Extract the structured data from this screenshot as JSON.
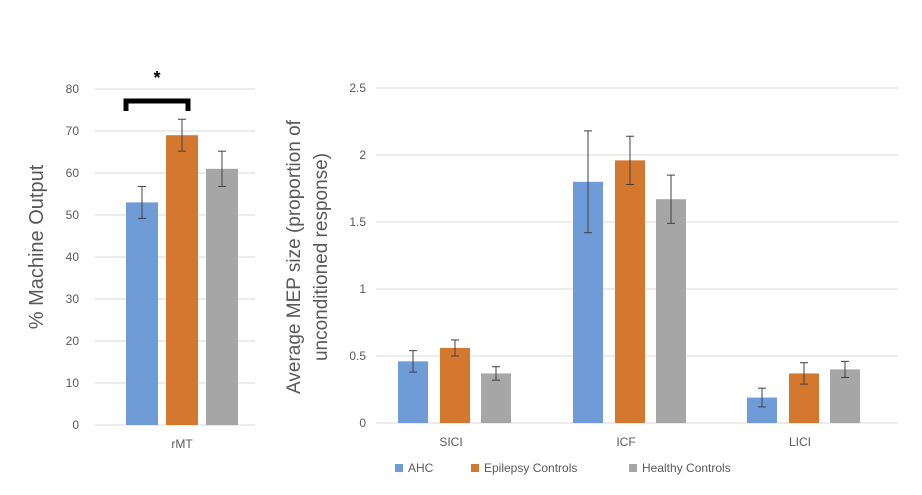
{
  "chart_data": [
    {
      "type": "bar",
      "ylabel": "% Machine Output",
      "categories": [
        "rMT"
      ],
      "ylim": [
        0,
        80
      ],
      "yticks": [
        0,
        10,
        20,
        30,
        40,
        50,
        60,
        70,
        80
      ],
      "grid": true,
      "series": [
        {
          "name": "AHC",
          "color": "#6f9bd6",
          "values": [
            53
          ],
          "err": [
            3.8
          ]
        },
        {
          "name": "Epilepsy Controls",
          "color": "#d4782f",
          "values": [
            69
          ],
          "err": [
            3.8
          ]
        },
        {
          "name": "Healthy Controls",
          "color": "#a6a6a6",
          "values": [
            61
          ],
          "err": [
            4.2
          ]
        }
      ],
      "annotation": {
        "text": "*",
        "between": [
          "AHC",
          "Epilepsy Controls"
        ],
        "category": "rMT"
      }
    },
    {
      "type": "bar",
      "ylabel_lines": [
        "Average MEP size (proportion of",
        "unconditioned response)"
      ],
      "categories": [
        "SICI",
        "ICF",
        "LICI"
      ],
      "ylim": [
        0,
        2.5
      ],
      "yticks": [
        0,
        0.5,
        1,
        1.5,
        2,
        2.5
      ],
      "ytick_labels": [
        "0",
        "0.5",
        "1",
        "1.5",
        "2",
        "2.5"
      ],
      "grid": true,
      "series": [
        {
          "name": "AHC",
          "color": "#6f9bd6",
          "values": [
            0.46,
            1.8,
            0.19
          ],
          "err": [
            0.08,
            0.38,
            0.07
          ]
        },
        {
          "name": "Epilepsy Controls",
          "color": "#d4782f",
          "values": [
            0.56,
            1.96,
            0.37
          ],
          "err": [
            0.06,
            0.18,
            0.08
          ]
        },
        {
          "name": "Healthy Controls",
          "color": "#a6a6a6",
          "values": [
            0.37,
            1.67,
            0.4
          ],
          "err": [
            0.05,
            0.18,
            0.06
          ]
        }
      ]
    }
  ],
  "legend": {
    "placement": "bottom",
    "items": [
      {
        "label": "AHC",
        "color": "#6f9bd6"
      },
      {
        "label": "Epilepsy Controls",
        "color": "#d4782f"
      },
      {
        "label": "Healthy Controls",
        "color": "#a6a6a6"
      }
    ]
  }
}
